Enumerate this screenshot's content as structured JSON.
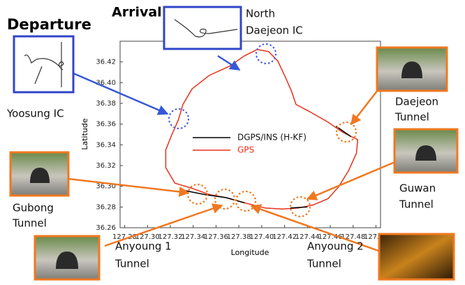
{
  "chart_data": {
    "type": "line",
    "xlabel": "Longitude",
    "ylabel": "Latitude",
    "xlim": [
      127.276,
      127.504
    ],
    "ylim": [
      36.26,
      36.44
    ],
    "xticks": [
      127.28,
      {
        "value": 127.3,
        "label": "127.30"
      },
      127.32,
      127.34,
      127.36,
      127.38,
      {
        "value": 127.4,
        "label": "127.40"
      },
      127.42,
      127.44,
      127.46,
      127.48,
      {
        "value": 127.5,
        "label": "127.50"
      }
    ],
    "yticks": [
      36.26,
      36.28,
      {
        "value": 36.3,
        "label": "36.30"
      },
      36.32,
      36.34,
      36.36,
      36.38,
      {
        "value": 36.4,
        "label": "36.40"
      },
      36.42
    ],
    "series": [
      {
        "name": "DGPS/INS (H-KF)",
        "color": "#000000",
        "x": [
          127.332,
          127.35,
          127.369,
          127.385,
          null,
          127.425,
          127.44,
          null,
          127.465,
          127.478
        ],
        "values": [
          36.296,
          36.292,
          36.289,
          36.284,
          null,
          36.279,
          36.28,
          null,
          36.358,
          36.348
        ]
      },
      {
        "name": "GPS",
        "color": "#e8301c",
        "x": [
          127.327,
          127.331,
          127.339,
          127.354,
          127.372,
          127.385,
          127.396,
          127.406,
          127.414,
          127.42,
          127.426,
          127.43,
          127.442,
          127.458,
          127.471,
          127.484,
          127.483,
          127.476,
          127.467,
          127.458,
          127.445,
          127.432,
          127.418,
          127.403,
          127.385,
          127.369,
          127.354,
          127.339,
          127.324,
          127.316,
          127.316,
          127.321,
          127.327
        ],
        "values": [
          36.364,
          36.379,
          36.394,
          36.407,
          36.416,
          36.426,
          36.432,
          36.43,
          36.421,
          36.407,
          36.392,
          36.379,
          36.372,
          36.362,
          36.352,
          36.345,
          36.332,
          36.315,
          36.299,
          36.288,
          36.282,
          36.279,
          36.278,
          36.279,
          36.284,
          36.289,
          36.292,
          36.298,
          36.303,
          36.318,
          36.335,
          36.349,
          36.364
        ]
      }
    ],
    "annotations": {
      "departure": "Departure",
      "arrival": "Arrival",
      "north_daejeon_ic": [
        "North",
        "Daejeon IC"
      ],
      "yoosung_ic": "Yoosung IC",
      "daejeon_tunnel": [
        "Daejeon",
        "Tunnel"
      ],
      "guwan_tunnel": [
        "Guwan",
        "Tunnel"
      ],
      "gubong_tunnel": [
        "Gubong",
        "Tunnel"
      ],
      "anyoung_1_tunnel": [
        "Anyoung 1",
        "Tunnel"
      ],
      "anyoung_2_tunnel": [
        "Anyoung 2",
        "Tunnel"
      ]
    }
  }
}
